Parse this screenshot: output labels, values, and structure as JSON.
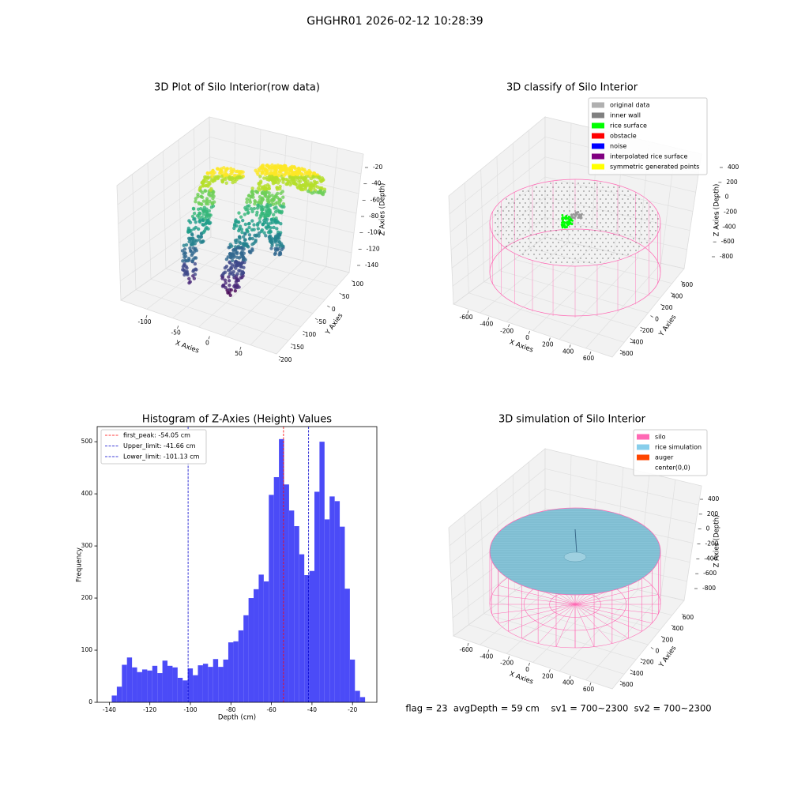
{
  "title": "GHGHR01 2026-02-12 10:28:39",
  "chart_data": [
    {
      "type": "scatter3d",
      "title": "3D Plot of Silo Interior(row data)",
      "xlabel": "X Axies",
      "ylabel": "Y Axies",
      "zlabel": "Z Axies (Depth)",
      "xlim": [
        -130,
        80
      ],
      "ylim": [
        -210,
        120
      ],
      "zlim": [
        -150,
        -10
      ],
      "xticks": [
        -100,
        -50,
        0,
        50
      ],
      "yticks": [
        -200,
        -150,
        -100,
        -50,
        0,
        50,
        100
      ],
      "zticks": [
        -140,
        -120,
        -100,
        -80,
        -60,
        -40,
        -20
      ]
    },
    {
      "type": "classify3d",
      "title": "3D classify of Silo Interior",
      "xlabel": "X Axies",
      "ylabel": "Y Axies",
      "zlabel": "Z Axies (Depth)",
      "xlim": [
        -700,
        700
      ],
      "ylim": [
        -700,
        700
      ],
      "zlim": [
        -900,
        500
      ],
      "xticks": [
        -600,
        -400,
        -200,
        0,
        200,
        400,
        600
      ],
      "yticks": [
        -600,
        -400,
        -200,
        0,
        200,
        400,
        600
      ],
      "zticks": [
        -800,
        -600,
        -400,
        -200,
        0,
        200,
        400
      ],
      "legend": [
        {
          "name": "original data",
          "color": "#b0b0b0"
        },
        {
          "name": "inner wall",
          "color": "#808080"
        },
        {
          "name": "rice surface",
          "color": "#00ff00"
        },
        {
          "name": "obstacle",
          "color": "#ff0000"
        },
        {
          "name": "noise",
          "color": "#0000ff"
        },
        {
          "name": "interpolated rice surface",
          "color": "#800080"
        },
        {
          "name": "symmetric generated points",
          "color": "#ffff00"
        }
      ]
    },
    {
      "type": "histogram",
      "title": "Histogram of Z-Axies (Height) Values",
      "xlabel": "Depth (cm)",
      "ylabel": "Frequency",
      "color": "#4b4bf7",
      "bins": [
        -138.8,
        -136.3,
        -133.8,
        -131.3,
        -128.8,
        -126.3,
        -123.8,
        -121.3,
        -118.8,
        -116.3,
        -113.8,
        -111.3,
        -108.8,
        -106.3,
        -103.8,
        -101.3,
        -98.8,
        -96.3,
        -93.8,
        -91.3,
        -88.8,
        -86.3,
        -83.8,
        -81.3,
        -78.8,
        -76.3,
        -73.8,
        -71.3,
        -68.8,
        -66.3,
        -63.8,
        -61.3,
        -58.8,
        -56.3,
        -53.8,
        -51.3,
        -48.8,
        -46.3,
        -43.8,
        -41.3,
        -38.8,
        -36.3,
        -33.8,
        -31.3,
        -28.8,
        -26.3,
        -23.8,
        -21.3,
        -18.8,
        -16.3,
        -13.8
      ],
      "values": [
        13,
        30,
        72,
        86,
        67,
        58,
        63,
        61,
        70,
        56,
        80,
        70,
        67,
        47,
        42,
        65,
        52,
        71,
        74,
        68,
        83,
        68,
        82,
        115,
        117,
        138,
        167,
        200,
        217,
        245,
        232,
        398,
        432,
        505,
        418,
        368,
        338,
        284,
        244,
        252,
        404,
        500,
        351,
        395,
        386,
        337,
        218,
        82,
        22,
        10
      ],
      "xlim": [
        -146,
        -8
      ],
      "ylim": [
        0,
        529
      ],
      "xticks": [
        -140,
        -120,
        -100,
        -80,
        -60,
        -40,
        -20
      ],
      "yticks": [
        0,
        100,
        200,
        300,
        400,
        500
      ],
      "vlines": [
        {
          "name": "first_peak: -54.05 cm",
          "value": -54.05,
          "color": "#ff0000"
        },
        {
          "name": "Upper_limit: -41.66 cm",
          "value": -41.66,
          "color": "#0000cc"
        },
        {
          "name": "Lower_limit: -101.13 cm",
          "value": -101.13,
          "color": "#0000cc"
        }
      ]
    },
    {
      "type": "surface3d",
      "title": "3D simulation of Silo Interior",
      "xlabel": "X Axies",
      "ylabel": "Y Axies",
      "zlabel": "Z Axies (Depth)",
      "xlim": [
        -700,
        700
      ],
      "ylim": [
        -700,
        700
      ],
      "zlim": [
        -900,
        500
      ],
      "xticks": [
        -600,
        -400,
        -200,
        0,
        200,
        400,
        600
      ],
      "yticks": [
        -600,
        -400,
        -200,
        0,
        200,
        400,
        600
      ],
      "zticks": [
        -800,
        -600,
        -400,
        -200,
        0,
        200,
        400
      ],
      "legend": [
        {
          "name": "silo",
          "color": "#ff69b4"
        },
        {
          "name": "rice simulation",
          "color": "#87ceeb"
        },
        {
          "name": "auger",
          "color": "#ff4500"
        },
        {
          "name": "center(0,0)",
          "color": "#ffffff"
        }
      ],
      "annotation": "flag = 23  avgDepth = 59 cm    sv1 = 700~2300  sv2 = 700~2300"
    }
  ]
}
